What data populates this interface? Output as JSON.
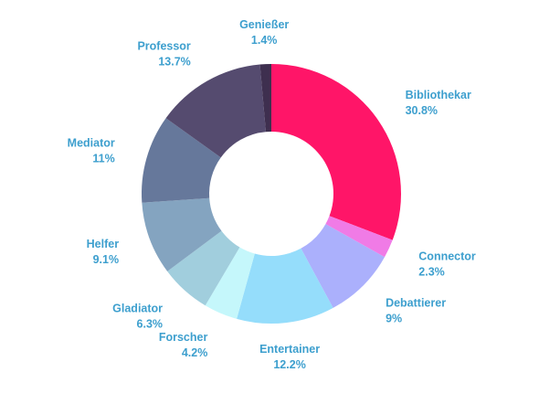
{
  "chart_data": {
    "type": "pie",
    "donut": true,
    "legend": "none",
    "slices": [
      {
        "name": "Bibliothekar",
        "value": 30.8,
        "value_label": "30.8%",
        "color": "#FF1568"
      },
      {
        "name": "Connector",
        "value": 2.3,
        "value_label": "2.3%",
        "color": "#F07BE6"
      },
      {
        "name": "Debattierer",
        "value": 9,
        "value_label": "9%",
        "color": "#ABB0FC"
      },
      {
        "name": "Entertainer",
        "value": 12.2,
        "value_label": "12.2%",
        "color": "#95DDFB"
      },
      {
        "name": "Forscher",
        "value": 4.2,
        "value_label": "4.2%",
        "color": "#C5F7FB"
      },
      {
        "name": "Gladiator",
        "value": 6.3,
        "value_label": "6.3%",
        "color": "#A1CEDD"
      },
      {
        "name": "Helfer",
        "value": 9.1,
        "value_label": "9.1%",
        "color": "#84A4C0"
      },
      {
        "name": "Mediator",
        "value": 11,
        "value_label": "11%",
        "color": "#66789B"
      },
      {
        "name": "Professor",
        "value": 13.7,
        "value_label": "13.7%",
        "color": "#554B6F"
      },
      {
        "name": "Genießer",
        "value": 1.4,
        "value_label": "1.4%",
        "color": "#3E2F4F"
      }
    ]
  },
  "colors": {
    "label_text": "#3D9FCE",
    "background": "#FFFFFF"
  }
}
